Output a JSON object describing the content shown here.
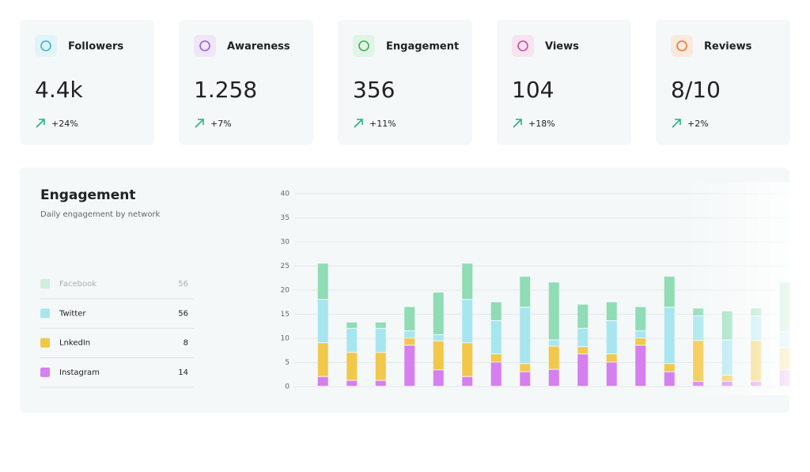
{
  "cards": [
    {
      "name": "Followers",
      "value": "4.4k",
      "change": "+24%"
    },
    {
      "name": "Awareness",
      "value": "1.258",
      "change": "+7%"
    },
    {
      "name": "Engagement",
      "value": "356",
      "change": "+11%"
    },
    {
      "name": "Views",
      "value": "104",
      "change": "+18%"
    },
    {
      "name": "Reviews",
      "value": "8/10",
      "change": "+2%"
    }
  ],
  "chart_data": {
    "type": "stacked-bar",
    "title": "Engagement",
    "subtitle": "Daily engagement by network",
    "categories": [
      null,
      null,
      null,
      null,
      null,
      null,
      null,
      null,
      null,
      null,
      null,
      null,
      null,
      null,
      null,
      null,
      null
    ],
    "ylim": [
      0,
      40
    ],
    "yticks": [
      0,
      5,
      10,
      15,
      20,
      25,
      30,
      35,
      40
    ],
    "grid": true,
    "series": [
      {
        "name": "Facebook",
        "color": "#8fdcb5",
        "total": 56,
        "values": [
          7.5,
          1.3,
          1.3,
          5,
          8.8,
          7.5,
          3.9,
          6.4,
          12,
          5,
          3.9,
          5,
          6.4,
          1.6,
          6,
          1.6,
          10.3
        ]
      },
      {
        "name": "Twitter",
        "color": "#a8e6ef",
        "total": 56,
        "values": [
          9,
          5,
          5,
          1.5,
          1.3,
          9,
          6.9,
          11.7,
          1.3,
          3.8,
          6.9,
          1.5,
          11.7,
          5.1,
          7.3,
          5.1,
          3.3
        ]
      },
      {
        "name": "LnkedIn",
        "color": "#f2c84b",
        "total": 8,
        "values": [
          7,
          5.8,
          5.8,
          1.5,
          6,
          7,
          1.7,
          1.7,
          4.8,
          1.5,
          1.7,
          1.5,
          1.7,
          8.5,
          1.3,
          8.5,
          4.6
        ]
      },
      {
        "name": "Instagram",
        "color": "#d67ff0",
        "total": 14,
        "values": [
          2,
          1.2,
          1.2,
          8.5,
          3.4,
          2,
          5,
          3,
          3.5,
          6.7,
          5,
          8.5,
          3,
          1,
          1,
          1,
          3.4
        ]
      }
    ]
  }
}
